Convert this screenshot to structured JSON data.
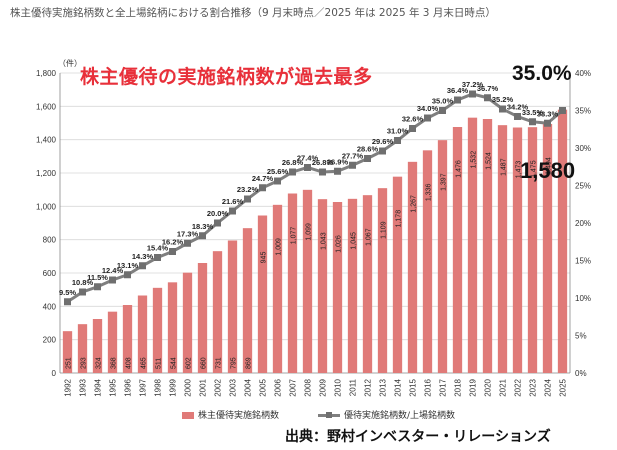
{
  "page_title": "株主優待実施銘柄数と全上場銘柄における割合推移（9 月末時点／2025 年は 2025 年 3 月末日時点）",
  "headline": "株主優待の実施銘柄数が過去最多",
  "callouts": {
    "pct": "35.0%",
    "count": "1,580"
  },
  "source": "出典：野村インベスター・リレーションズ",
  "colors": {
    "bar": "#e07a78",
    "line": "#7f7f7f",
    "headline": "#e8303a"
  },
  "chart_data": {
    "type": "bar",
    "categories": [
      "1992",
      "1993",
      "1994",
      "1995",
      "1996",
      "1997",
      "1998",
      "1999",
      "2000",
      "2001",
      "2002",
      "2003",
      "2004",
      "2005",
      "2006",
      "2007",
      "2008",
      "2009",
      "2010",
      "2011",
      "2012",
      "2013",
      "2014",
      "2015",
      "2016",
      "2017",
      "2018",
      "2019",
      "2020",
      "2021",
      "2022",
      "2023",
      "2024",
      "2025"
    ],
    "series": [
      {
        "name": "株主優待実施銘柄数",
        "type": "bar",
        "axis": "left",
        "values": [
          251,
          293,
          324,
          368,
          408,
          465,
          511,
          544,
          602,
          660,
          731,
          795,
          869,
          945,
          1009,
          1077,
          1099,
          1043,
          1026,
          1045,
          1067,
          1109,
          1178,
          1267,
          1336,
          1397,
          1476,
          1532,
          1524,
          1487,
          1473,
          1475,
          1494,
          1580
        ]
      },
      {
        "name": "優待実施銘柄数/上場銘柄数",
        "type": "line",
        "axis": "right",
        "values": [
          9.5,
          10.8,
          11.5,
          12.4,
          13.1,
          14.3,
          15.4,
          16.2,
          17.3,
          18.3,
          20.0,
          21.6,
          23.2,
          24.7,
          25.6,
          26.8,
          27.4,
          26.8,
          26.9,
          27.7,
          28.6,
          29.6,
          31.0,
          32.6,
          34.0,
          35.0,
          36.4,
          37.2,
          36.7,
          35.2,
          34.2,
          33.5,
          33.3,
          35.0
        ]
      }
    ],
    "left_axis": {
      "unit": "（件）",
      "ylim": [
        0,
        1800
      ],
      "ticks": [
        "0",
        "200",
        "400",
        "600",
        "800",
        "1,000",
        "1,200",
        "1,400",
        "1,600",
        "1,800"
      ]
    },
    "right_axis": {
      "ylim": [
        0,
        40
      ],
      "ticks": [
        "0%",
        "5%",
        "10%",
        "15%",
        "20%",
        "25%",
        "30%",
        "35%",
        "40%"
      ]
    },
    "bar_labels": [
      "251",
      "293",
      "324",
      "368",
      "408",
      "465",
      "511",
      "544",
      "602",
      "660",
      "731",
      "795",
      "869",
      "945",
      "1,009",
      "1,077",
      "1,099",
      "1,043",
      "1,026",
      "1,045",
      "1,067",
      "1,109",
      "1,178",
      "1,267",
      "1,336",
      "1,397",
      "1,476",
      "1,532",
      "1,524",
      "1,487",
      "1,473",
      "1,475",
      "1,494",
      ""
    ],
    "line_labels": [
      "9.5%",
      "10.8%",
      "11.5%",
      "12.4%",
      "13.1%",
      "14.3%",
      "15.4%",
      "16.2%",
      "17.3%",
      "18.3%",
      "20.0%",
      "21.6%",
      "23.2%",
      "24.7%",
      "25.6%",
      "26.8%",
      "27.4%",
      "26.8%",
      "26.9%",
      "27.7%",
      "28.6%",
      "29.6%",
      "31.0%",
      "32.6%",
      "34.0%",
      "35.0%",
      "36.4%",
      "37.2%",
      "36.7%",
      "35.2%",
      "34.2%",
      "33.5%",
      "33.3%",
      ""
    ],
    "grid": true,
    "legend_position": "bottom"
  }
}
